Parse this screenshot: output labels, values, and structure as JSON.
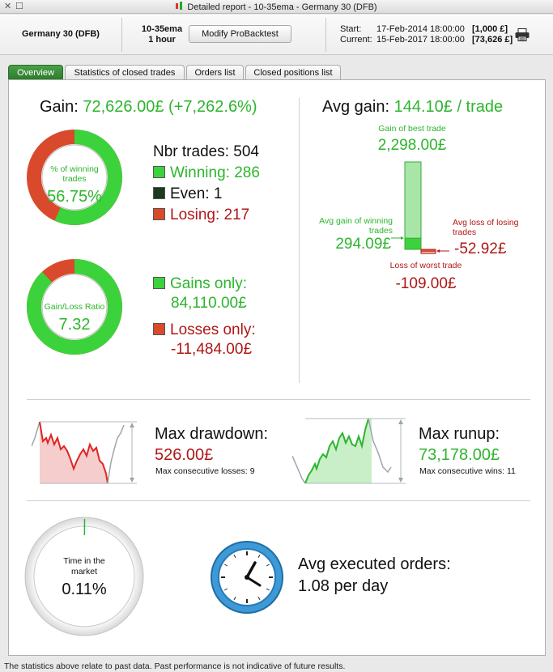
{
  "window": {
    "title": "Detailed report - 10-35ema - Germany 30 (DFB)",
    "close_glyph": "✕",
    "max_glyph": "☐"
  },
  "header": {
    "instrument": "Germany 30 (DFB)",
    "strategy_name": "10-35ema",
    "timeframe": "1 hour",
    "modify_button": "Modify ProBacktest",
    "start_label": "Start:",
    "start_date": "17-Feb-2014 18:00:00",
    "start_capital": "[1,000 £]",
    "current_label": "Current:",
    "current_date": "15-Feb-2017 18:00:00",
    "current_capital": "[73,626 £]"
  },
  "tabs": [
    {
      "label": "Overview",
      "active": true
    },
    {
      "label": "Statistics of closed trades",
      "active": false
    },
    {
      "label": "Orders list",
      "active": false
    },
    {
      "label": "Closed positions list",
      "active": false
    }
  ],
  "gain": {
    "label": "Gain:",
    "value": "72,626.00£ (+7,262.6%)",
    "winning_ring": {
      "caption": "% of winning trades",
      "value": "56.75%",
      "fraction": 0.5675
    },
    "nbr_trades": "Nbr trades: 504",
    "winning": "Winning: 286",
    "even": "Even: 1",
    "losing": "Losing: 217",
    "ratio_ring": {
      "caption": "Gain/Loss Ratio",
      "value": "7.32",
      "fraction": 0.88
    },
    "gains_only_label": "Gains only:",
    "gains_only_value": "84,110.00£",
    "losses_only_label": "Losses only:",
    "losses_only_value": "-11,484.00£"
  },
  "avg_gain": {
    "label": "Avg gain:",
    "value": "144.10£ / trade",
    "best_label": "Gain of best trade",
    "best_value": "2,298.00£",
    "avg_win_label": "Avg gain of winning trades",
    "avg_win_value": "294.09£",
    "avg_loss_label": "Avg loss of losing trades",
    "avg_loss_value": "-52.92£",
    "worst_label": "Loss of worst trade",
    "worst_value": "-109.00£",
    "bar": {
      "best": 2298,
      "avg_win": 294.09,
      "avg_loss": -52.92,
      "worst": -109
    }
  },
  "drawdown": {
    "title": "Max drawdown:",
    "value": "526.00£",
    "consecutive": "Max consecutive losses: 9"
  },
  "runup": {
    "title": "Max runup:",
    "value": "73,178.00£",
    "consecutive": "Max consecutive wins: 11"
  },
  "market": {
    "caption": "Time in the market",
    "value": "0.11%",
    "fraction": 0.0011
  },
  "orders": {
    "title": "Avg executed orders:",
    "value": "1.08 per day"
  },
  "footer": "The statistics above relate to past data. Past performance is not indicative of future results.",
  "colors": {
    "green": "#2db52d",
    "red": "#b01616",
    "tab_active": "#2a7a2a"
  }
}
